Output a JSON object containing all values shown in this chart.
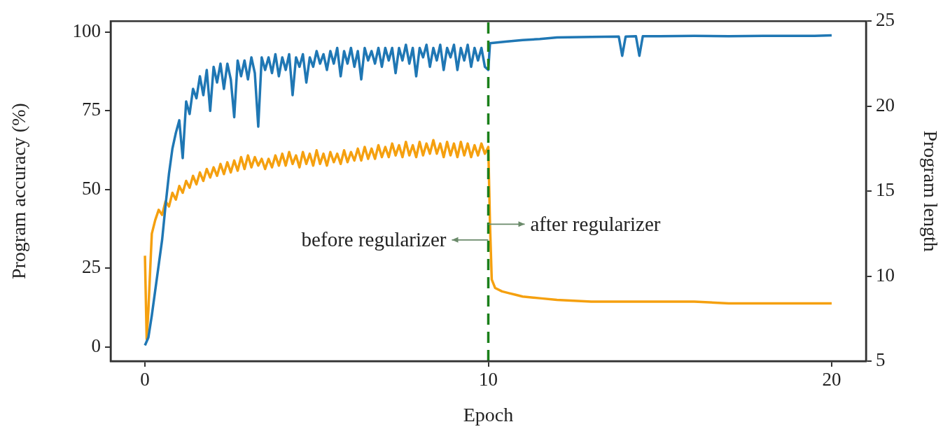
{
  "chart_data": {
    "type": "line",
    "xlabel": "Epoch",
    "ylabel": "Program accuracy (%)",
    "y2label": "Program length",
    "xlim": [
      -1,
      21
    ],
    "xticks": [
      0,
      10,
      20
    ],
    "ylim": [
      -4.5,
      103.5
    ],
    "yticks": [
      0,
      25,
      50,
      75,
      100
    ],
    "y2lim": [
      5,
      25
    ],
    "y2ticks": [
      5,
      10,
      15,
      20,
      25
    ],
    "grid": false,
    "legend": false,
    "marker": "none",
    "line_style": "solid",
    "series": [
      {
        "color": "#1f77b4",
        "axis": "y",
        "x": [
          0,
          0.1,
          0.2,
          0.3,
          0.4,
          0.5,
          0.6,
          0.7,
          0.8,
          0.9,
          1.0,
          1.1,
          1.2,
          1.3,
          1.4,
          1.5,
          1.6,
          1.7,
          1.8,
          1.9,
          2.0,
          2.1,
          2.2,
          2.3,
          2.4,
          2.5,
          2.6,
          2.7,
          2.8,
          2.9,
          3.0,
          3.1,
          3.2,
          3.3,
          3.4,
          3.5,
          3.6,
          3.7,
          3.8,
          3.9,
          4.0,
          4.1,
          4.2,
          4.3,
          4.4,
          4.5,
          4.6,
          4.7,
          4.8,
          4.9,
          5.0,
          5.1,
          5.2,
          5.3,
          5.4,
          5.5,
          5.6,
          5.7,
          5.8,
          5.9,
          6.0,
          6.1,
          6.2,
          6.3,
          6.4,
          6.5,
          6.6,
          6.7,
          6.8,
          6.9,
          7.0,
          7.1,
          7.2,
          7.3,
          7.4,
          7.5,
          7.6,
          7.7,
          7.8,
          7.9,
          8.0,
          8.1,
          8.2,
          8.3,
          8.4,
          8.5,
          8.6,
          8.7,
          8.8,
          8.9,
          9.0,
          9.1,
          9.2,
          9.3,
          9.4,
          9.5,
          9.6,
          9.7,
          9.8,
          9.9,
          10.0,
          10.05,
          10.5,
          11,
          11.5,
          12,
          13,
          13.8,
          13.9,
          14.0,
          14.3,
          14.4,
          14.5,
          15,
          16,
          17,
          18,
          19,
          19.5,
          20
        ],
        "values": [
          0.5,
          3,
          10,
          18,
          26,
          34,
          45,
          55,
          63,
          68,
          72,
          60,
          78,
          74,
          82,
          79,
          86,
          80,
          88,
          75,
          89,
          84,
          90,
          82,
          90,
          85,
          73,
          91,
          86,
          91,
          85,
          92,
          87,
          70,
          92,
          88,
          92,
          87,
          93,
          86,
          92,
          88,
          93,
          80,
          92,
          89,
          93,
          84,
          92,
          89,
          94,
          90,
          93,
          88,
          94,
          90,
          95,
          86,
          94,
          90,
          95,
          89,
          94,
          85,
          95,
          91,
          94,
          90,
          95,
          89,
          95,
          91,
          95,
          87,
          95,
          91,
          96,
          90,
          95,
          86,
          95,
          92,
          96,
          89,
          95,
          91,
          96,
          88,
          95,
          92,
          96,
          88,
          95,
          91,
          96,
          89,
          95,
          91,
          95,
          89,
          88,
          96.5,
          97,
          97.5,
          97.8,
          98.3,
          98.5,
          98.6,
          92.5,
          98.6,
          98.7,
          92.5,
          98.7,
          98.7,
          98.8,
          98.7,
          98.8,
          98.8,
          98.8,
          99
        ]
      },
      {
        "color": "#f5a00f",
        "axis": "y2",
        "x": [
          0,
          0.05,
          0.1,
          0.2,
          0.3,
          0.4,
          0.5,
          0.6,
          0.7,
          0.8,
          0.9,
          1.0,
          1.1,
          1.2,
          1.3,
          1.4,
          1.5,
          1.6,
          1.7,
          1.8,
          1.9,
          2.0,
          2.1,
          2.2,
          2.3,
          2.4,
          2.5,
          2.6,
          2.7,
          2.8,
          2.9,
          3.0,
          3.1,
          3.2,
          3.3,
          3.4,
          3.5,
          3.6,
          3.7,
          3.8,
          3.9,
          4.0,
          4.1,
          4.2,
          4.3,
          4.4,
          4.5,
          4.6,
          4.7,
          4.8,
          4.9,
          5.0,
          5.1,
          5.2,
          5.3,
          5.4,
          5.5,
          5.6,
          5.7,
          5.8,
          5.9,
          6.0,
          6.1,
          6.2,
          6.3,
          6.4,
          6.5,
          6.6,
          6.7,
          6.8,
          6.9,
          7.0,
          7.1,
          7.2,
          7.3,
          7.4,
          7.5,
          7.6,
          7.7,
          7.8,
          7.9,
          8.0,
          8.1,
          8.2,
          8.3,
          8.4,
          8.5,
          8.6,
          8.7,
          8.8,
          8.9,
          9.0,
          9.1,
          9.2,
          9.3,
          9.4,
          9.5,
          9.6,
          9.7,
          9.8,
          9.9,
          10.0,
          10.05,
          10.1,
          10.2,
          10.4,
          10.6,
          10.8,
          11,
          11.5,
          12,
          13,
          14,
          15,
          16,
          17,
          18,
          19,
          20
        ],
        "values": [
          11.2,
          6.3,
          8,
          12.5,
          13.3,
          13.9,
          13.6,
          14.4,
          14.1,
          14.9,
          14.5,
          15.3,
          14.9,
          15.6,
          15.2,
          15.9,
          15.4,
          16.1,
          15.6,
          16.3,
          15.8,
          16.4,
          15.9,
          16.6,
          16.0,
          16.7,
          16.1,
          16.8,
          16.2,
          17.0,
          16.3,
          17.1,
          16.4,
          17.0,
          16.5,
          16.9,
          16.3,
          16.9,
          16.4,
          17.1,
          16.5,
          17.2,
          16.5,
          17.3,
          16.6,
          17.1,
          16.4,
          17.3,
          16.6,
          17.2,
          16.5,
          17.4,
          16.6,
          17.2,
          16.5,
          17.3,
          16.7,
          17.2,
          16.6,
          17.4,
          16.7,
          17.3,
          16.8,
          17.5,
          16.8,
          17.6,
          16.9,
          17.5,
          16.9,
          17.7,
          17.0,
          17.6,
          17.0,
          17.8,
          17.1,
          17.7,
          17.0,
          17.9,
          17.1,
          17.7,
          17.0,
          17.9,
          17.1,
          17.8,
          17.2,
          18.0,
          17.2,
          17.8,
          17.0,
          17.9,
          17.1,
          17.8,
          17.0,
          17.9,
          17.1,
          17.8,
          17.0,
          17.7,
          17.1,
          17.8,
          17.2,
          17.6,
          13,
          9.8,
          9.3,
          9.1,
          9.0,
          8.9,
          8.8,
          8.7,
          8.6,
          8.5,
          8.5,
          8.5,
          8.5,
          8.4,
          8.4,
          8.4,
          8.4
        ]
      }
    ],
    "ref_lines": [
      {
        "axis": "x",
        "value": 10,
        "color": "#1a7f1a",
        "line_style": "dashed"
      }
    ],
    "annotations": [
      {
        "text": "before regularizer",
        "x": 10,
        "y": 34
      },
      {
        "text": "after regularizer",
        "x": 10,
        "y": 39
      }
    ]
  }
}
